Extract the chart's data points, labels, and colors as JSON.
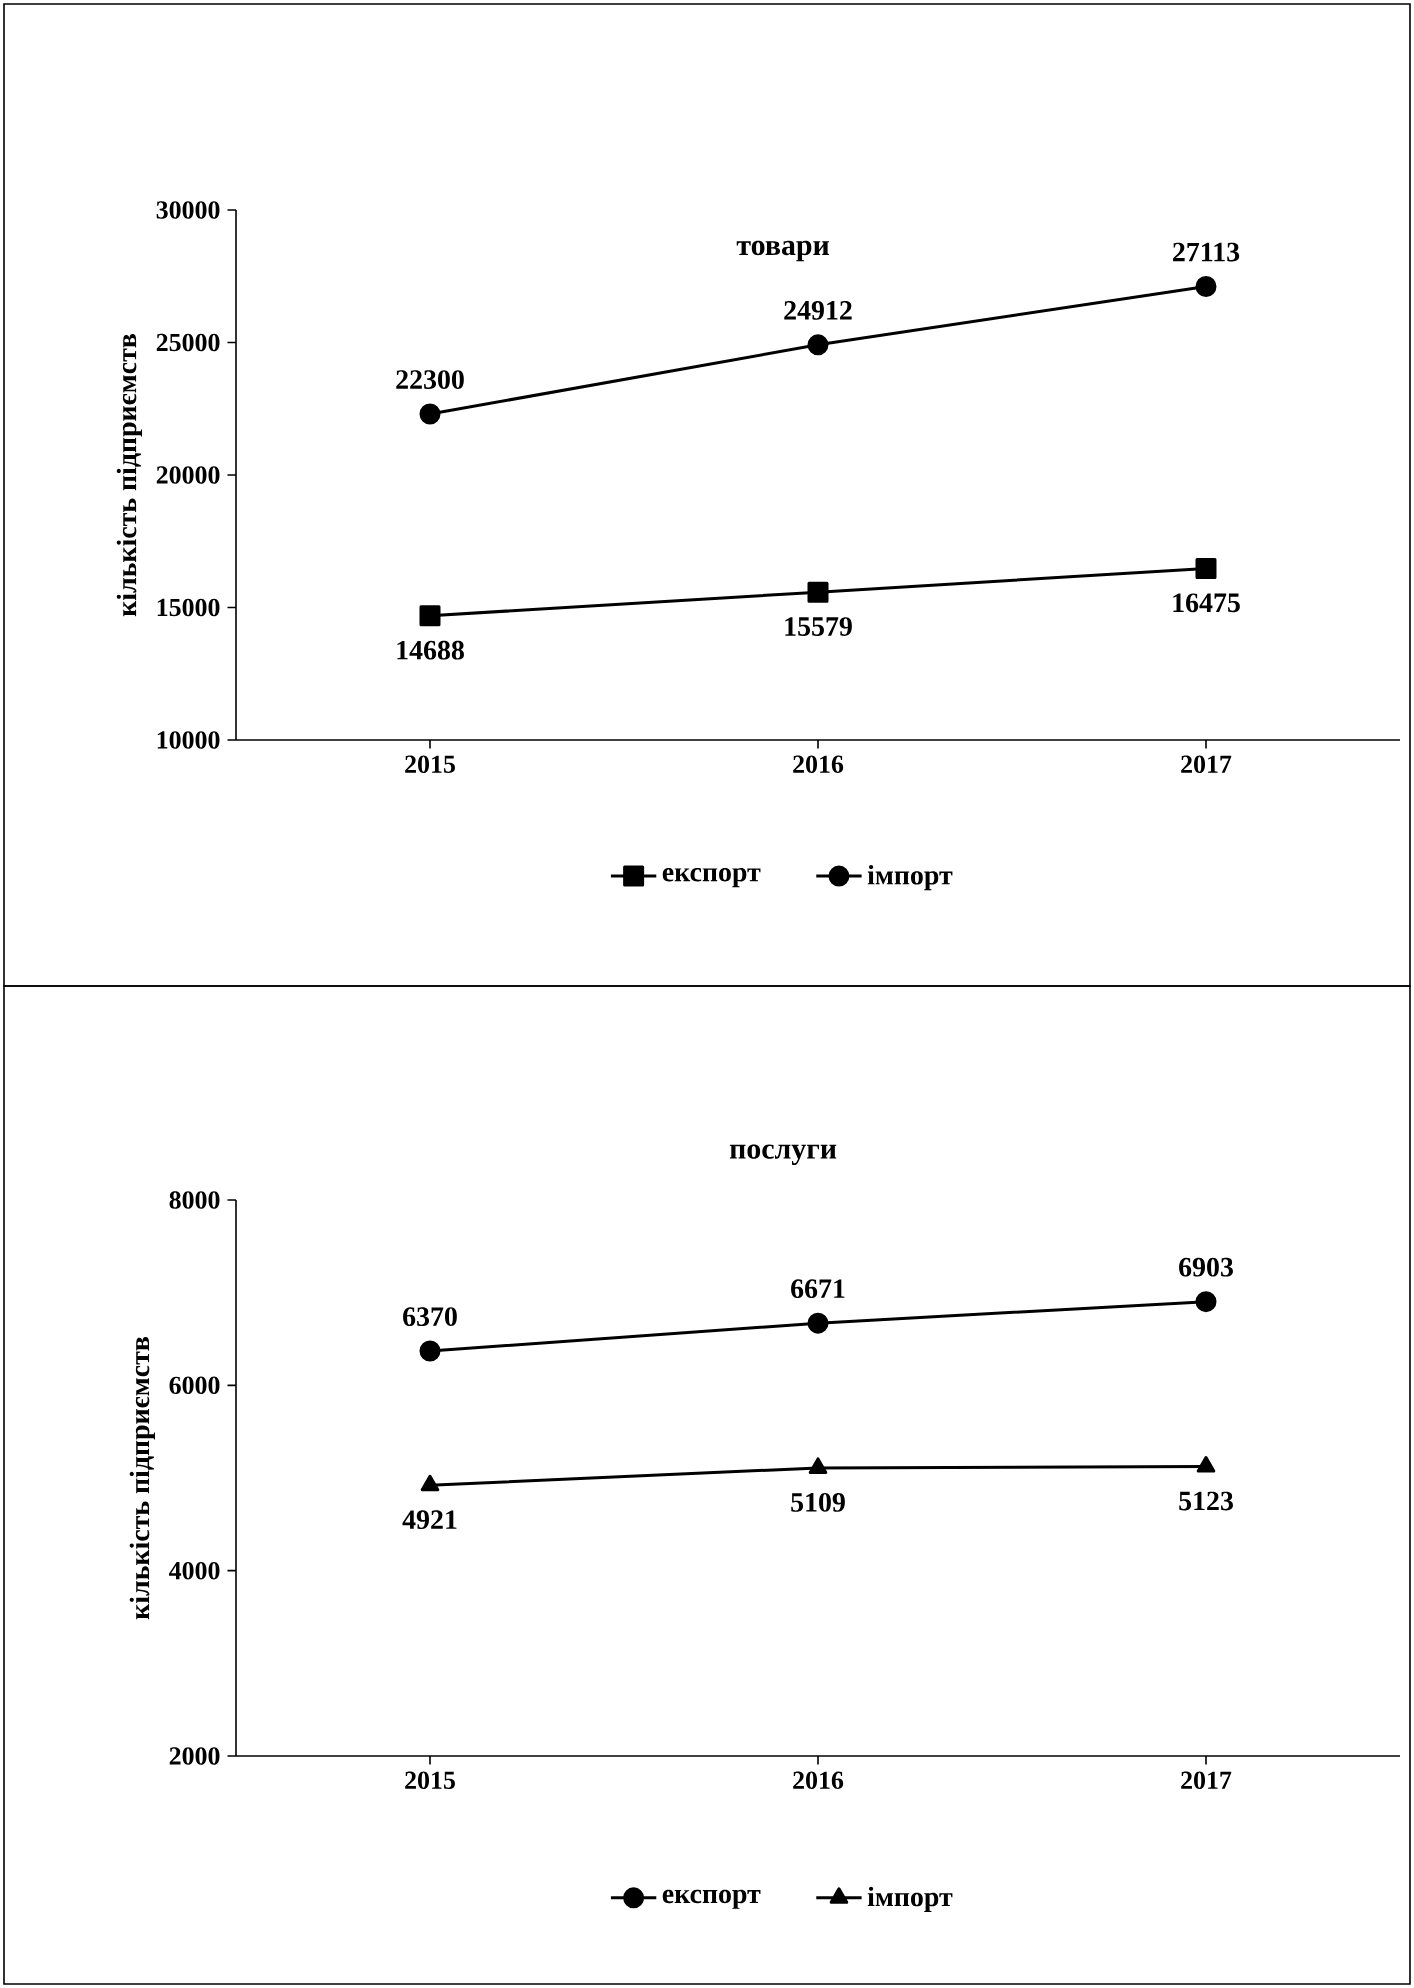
{
  "chart_data": [
    {
      "type": "line",
      "title": "товари",
      "ylabel": "кількість підприємств",
      "categories": [
        "2015",
        "2016",
        "2017"
      ],
      "series": [
        {
          "name": "експорт",
          "color": "#000000",
          "marker": "square",
          "values": [
            14688,
            15579,
            16475
          ]
        },
        {
          "name": "імпорт",
          "color": "#000000",
          "marker": "circle",
          "values": [
            22300,
            24912,
            27113
          ]
        }
      ],
      "ylim": [
        10000,
        30000
      ],
      "yticks": [
        10000,
        15000,
        20000,
        25000,
        30000
      ],
      "data_labels": true,
      "legend": "bottom",
      "grid": false
    },
    {
      "type": "line",
      "title": "послуги",
      "ylabel": "кількість підприємств",
      "categories": [
        "2015",
        "2016",
        "2017"
      ],
      "series": [
        {
          "name": "експорт",
          "color": "#000000",
          "marker": "circle",
          "values": [
            6370,
            6671,
            6903
          ]
        },
        {
          "name": "імпорт",
          "color": "#000000",
          "marker": "triangle",
          "values": [
            4921,
            5109,
            5123
          ]
        }
      ],
      "ylim": [
        2000,
        8000
      ],
      "yticks": [
        2000,
        4000,
        6000,
        8000
      ],
      "data_labels": true,
      "legend": "bottom",
      "grid": false
    }
  ]
}
